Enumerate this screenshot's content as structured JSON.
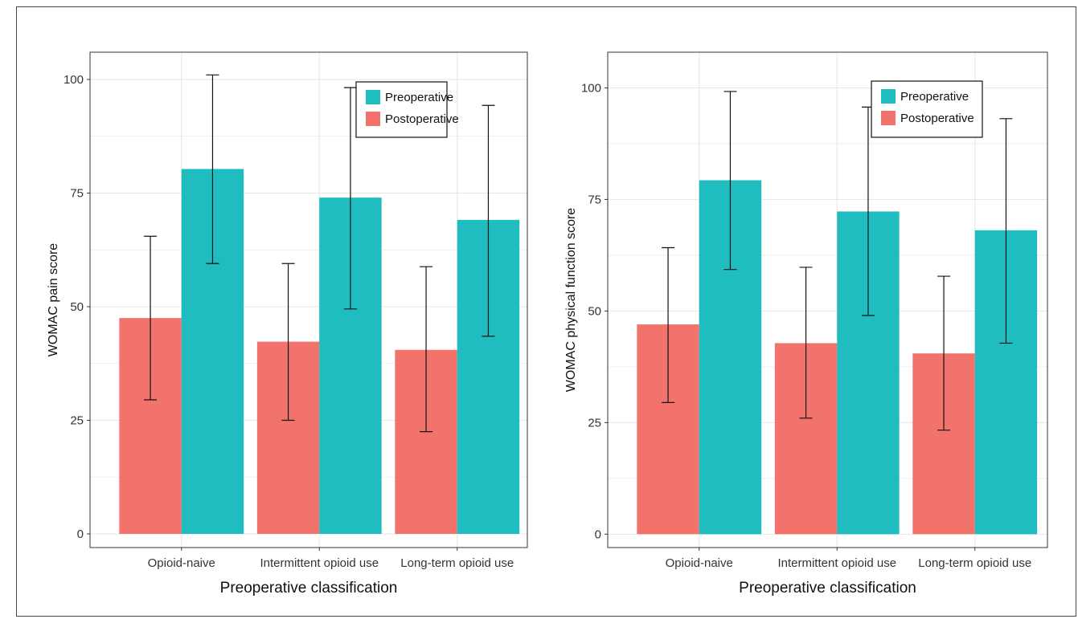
{
  "colors": {
    "Preoperative": "#1fbdbf",
    "Postoperative": "#f2736b",
    "grid": "#e6e6e6",
    "panel_border": "#333333"
  },
  "chart_data": [
    {
      "type": "bar",
      "title": "",
      "xlabel": "Preoperative classification",
      "ylabel": "WOMAC pain score",
      "categories": [
        "Opioid-naive",
        "Intermittent opioid use",
        "Long-term opioid use"
      ],
      "ylim": [
        -3,
        106
      ],
      "yticks": [
        0,
        25,
        50,
        75,
        100
      ],
      "legend_position": "top-right",
      "grid": true,
      "series": [
        {
          "name": "Postoperative",
          "values": [
            47.5,
            42.3,
            40.5
          ],
          "error_low": [
            29.5,
            25.0,
            22.5
          ],
          "error_high": [
            65.5,
            59.5,
            58.8
          ]
        },
        {
          "name": "Preoperative",
          "values": [
            80.3,
            74.0,
            69.1
          ],
          "error_low": [
            59.5,
            49.5,
            43.5
          ],
          "error_high": [
            101.0,
            98.2,
            94.3
          ]
        }
      ],
      "legend_order": [
        "Preoperative",
        "Postoperative"
      ]
    },
    {
      "type": "bar",
      "title": "",
      "xlabel": "Preoperative classification",
      "ylabel": "WOMAC physical function score",
      "categories": [
        "Opioid-naive",
        "Intermittent opioid use",
        "Long-term opioid use"
      ],
      "ylim": [
        -3,
        108
      ],
      "yticks": [
        0,
        25,
        50,
        75,
        100
      ],
      "legend_position": "top-right",
      "grid": true,
      "series": [
        {
          "name": "Postoperative",
          "values": [
            47.0,
            42.8,
            40.5
          ],
          "error_low": [
            29.5,
            26.0,
            23.3
          ],
          "error_high": [
            64.2,
            59.8,
            57.8
          ]
        },
        {
          "name": "Preoperative",
          "values": [
            79.3,
            72.3,
            68.1
          ],
          "error_low": [
            59.3,
            49.0,
            42.8
          ],
          "error_high": [
            99.2,
            95.7,
            93.1
          ]
        }
      ],
      "legend_order": [
        "Preoperative",
        "Postoperative"
      ]
    }
  ]
}
